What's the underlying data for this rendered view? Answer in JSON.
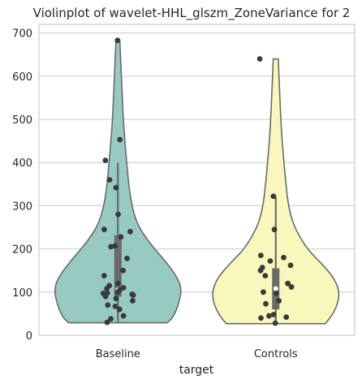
{
  "chart_data": {
    "type": "violin",
    "title": "Violinplot of wavelet-HHL_glszm_ZoneVariance for 2",
    "xlabel": "target",
    "ylabel": "",
    "ylim": [
      0,
      720
    ],
    "yticks": [
      0,
      100,
      200,
      300,
      400,
      500,
      600,
      700
    ],
    "grid": true,
    "categories": [
      "Baseline",
      "Controls"
    ],
    "colors": {
      "Baseline": "#97cbc2",
      "Controls": "#f8f7bc",
      "points": "#3a3a3a",
      "box": "#6a6a6a",
      "outline": "#6a6a6a",
      "grid": "#cccccc"
    },
    "violin": [
      {
        "category": "Baseline",
        "min": 29,
        "max": 683,
        "q1": 90,
        "median": 105,
        "q3": 232,
        "whisker_low": 29,
        "whisker_high": 400,
        "density_y": [
          29,
          40,
          60,
          80,
          100,
          120,
          140,
          160,
          180,
          200,
          230,
          260,
          300,
          350,
          400,
          450,
          500,
          550,
          600,
          650,
          683
        ],
        "density_w": [
          0.78,
          0.86,
          0.93,
          0.97,
          1.0,
          0.98,
          0.91,
          0.81,
          0.7,
          0.58,
          0.42,
          0.3,
          0.22,
          0.17,
          0.14,
          0.11,
          0.085,
          0.07,
          0.055,
          0.04,
          0.03
        ],
        "points": [
          683,
          453,
          405,
          360,
          342,
          280,
          245,
          240,
          228,
          207,
          205,
          178,
          150,
          138,
          120,
          115,
          110,
          108,
          105,
          100,
          98,
          97,
          95,
          93,
          90,
          85,
          80,
          70,
          67,
          60,
          45,
          38,
          30
        ]
      },
      {
        "category": "Controls",
        "min": 27,
        "max": 640,
        "q1": 60,
        "median": 108,
        "q3": 155,
        "whisker_low": 27,
        "whisker_high": 320,
        "density_y": [
          27,
          40,
          60,
          80,
          100,
          120,
          140,
          160,
          180,
          200,
          230,
          260,
          300,
          350,
          400,
          450,
          500,
          550,
          600,
          640
        ],
        "density_w": [
          0.78,
          0.86,
          0.94,
          0.99,
          1.0,
          0.96,
          0.88,
          0.76,
          0.63,
          0.5,
          0.37,
          0.27,
          0.2,
          0.16,
          0.13,
          0.1,
          0.08,
          0.065,
          0.05,
          0.04
        ],
        "points": [
          640,
          322,
          245,
          185,
          180,
          172,
          162,
          157,
          150,
          138,
          120,
          112,
          100,
          97,
          80,
          73,
          48,
          45,
          42,
          40,
          28
        ]
      }
    ]
  }
}
